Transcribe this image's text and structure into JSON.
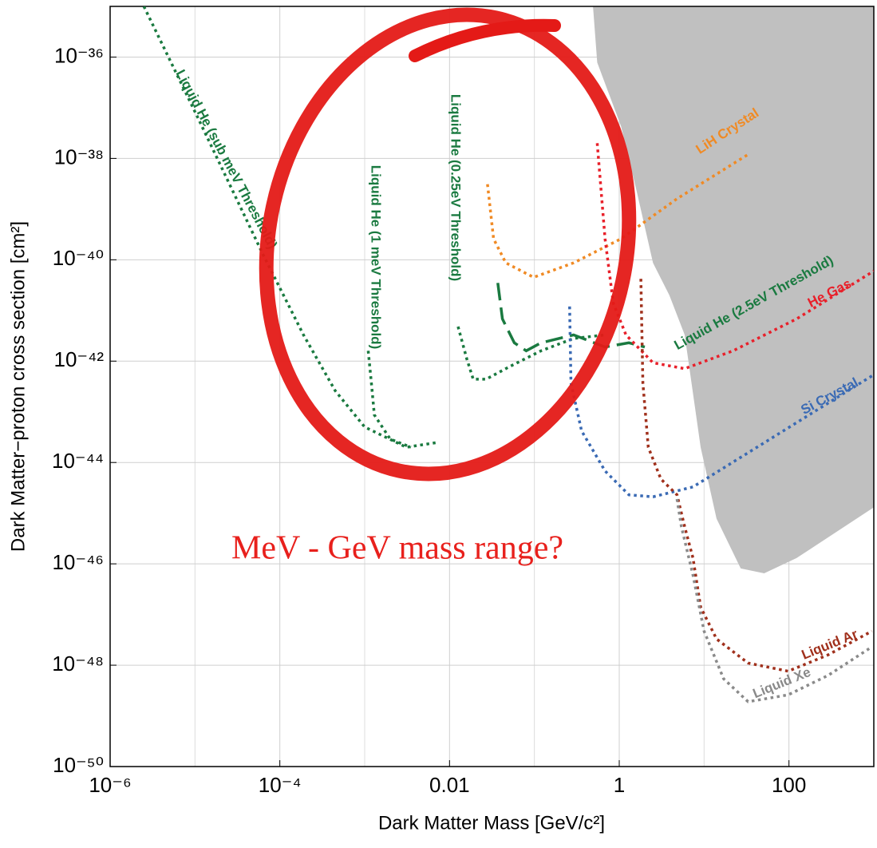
{
  "chart_data": {
    "type": "line",
    "x_label": "Dark Matter Mass [GeV/c²]",
    "y_label": "Dark Matter−proton cross section [cm²]",
    "annotation": "MeV - GeV mass range?",
    "annotation_color": "#e8201c",
    "log_x": true,
    "log_y": true,
    "grid": true,
    "xlim": [
      1e-06,
      1000
    ],
    "ylim": [
      1e-50,
      1e-35
    ],
    "xticks": [
      {
        "value": 1e-06,
        "label": "10⁻⁶"
      },
      {
        "value": 0.0001,
        "label": "10⁻⁴"
      },
      0.01,
      1,
      100
    ],
    "x_minor_grid": [
      1e-05,
      0.001,
      0.1,
      10
    ],
    "yticks": [
      {
        "value": 1e-50,
        "label": "10⁻⁵⁰"
      },
      {
        "value": 1e-48,
        "label": "10⁻⁴⁸"
      },
      {
        "value": 1e-46,
        "label": "10⁻⁴⁶"
      },
      {
        "value": 1e-44,
        "label": "10⁻⁴⁴"
      },
      {
        "value": 1e-42,
        "label": "10⁻⁴²"
      },
      {
        "value": 1e-40,
        "label": "10⁻⁴⁰"
      },
      {
        "value": 1e-38,
        "label": "10⁻³⁸"
      },
      {
        "value": 1e-36,
        "label": "10⁻³⁶"
      }
    ],
    "region": {
      "color": "#c0c0c0",
      "x": [
        0.49,
        0.55,
        1.05,
        1.6,
        2.5,
        3.9,
        5.9,
        9.1,
        14,
        27,
        51,
        123,
        1000
      ],
      "y": [
        1e-35,
        7.8e-37,
        4.3e-38,
        2.3e-39,
        8.7e-41,
        2e-41,
        3.3e-42,
        2e-44,
        7.8e-46,
        8.1e-47,
        6.5e-47,
        1.3e-46,
        1.3e-45
      ]
    },
    "series": [
      {
        "name": "Liquid He (sub meV Threshold)",
        "color": "#1a7a40",
        "dash": "dotted",
        "x": [
          2.5e-06,
          1.1e-05,
          6.3e-05,
          0.00019,
          0.00045,
          0.001,
          0.0031,
          0.0074
        ],
        "values": [
          1e-35,
          6e-38,
          1.3e-40,
          3.3e-42,
          2.6e-43,
          5e-44,
          2e-44,
          2.5e-44
        ]
      },
      {
        "name": "Liquid He (1 meV Threshold)",
        "color": "#1a7a40",
        "dash": "dotted",
        "x": [
          0.0011,
          0.0012,
          0.0013,
          0.002,
          0.0035
        ],
        "values": [
          1.6e-42,
          3.7e-43,
          8.7e-44,
          2.9e-44,
          2e-44
        ]
      },
      {
        "name": "Liquid He (0.25eV Threshold)",
        "color": "#1a7a40",
        "dash": "dotted",
        "x": [
          0.0126,
          0.016,
          0.019,
          0.027,
          0.051,
          0.12,
          0.29,
          0.68
        ],
        "values": [
          4.8e-42,
          1.1e-42,
          4.4e-43,
          4.4e-43,
          7.8e-43,
          1.6e-42,
          2.8e-42,
          3.3e-42
        ]
      },
      {
        "name": "Liquid He (2.5eV Threshold)",
        "color": "#1a7a40",
        "dash": "dashed",
        "x": [
          0.037,
          0.042,
          0.058,
          0.08,
          0.12,
          0.29,
          0.68,
          1.3,
          2.0
        ],
        "values": [
          3.5e-41,
          6.8e-42,
          2.3e-42,
          1.6e-42,
          2.3e-42,
          3.3e-42,
          1.9e-42,
          2.3e-42,
          1.9e-42
        ]
      },
      {
        "name": "LiH Crystal",
        "color": "#f08a24",
        "dash": "dotted",
        "x": [
          0.028,
          0.033,
          0.046,
          0.098,
          0.29,
          1.05,
          4.8,
          33
        ],
        "values": [
          3.1e-39,
          2.6e-40,
          8.7e-41,
          4.5e-41,
          8.7e-41,
          2.6e-40,
          1.6e-39,
          1.2e-38
        ]
      },
      {
        "name": "He Gas",
        "color": "#e8202a",
        "dash": "dotted",
        "x": [
          0.55,
          0.68,
          0.85,
          1.2,
          2.5,
          5.9,
          22,
          123,
          1000
        ],
        "values": [
          2e-38,
          2.6e-40,
          1.4e-41,
          3.3e-42,
          9.3e-43,
          7.1e-43,
          1.6e-42,
          6.8e-42,
          6e-41
        ]
      },
      {
        "name": "Si Crystal",
        "color": "#3a6ab4",
        "dash": "dotted",
        "x": [
          0.26,
          0.27,
          0.36,
          0.68,
          1.3,
          2.5,
          7.4,
          42,
          1000
        ],
        "values": [
          1.2e-41,
          3.7e-43,
          4.2e-44,
          6.8e-45,
          2.3e-45,
          2.1e-45,
          3.3e-45,
          2e-44,
          5.4e-43
        ]
      },
      {
        "name": "Liquid Ar",
        "color": "#a0301c",
        "dash": "dotted",
        "x": [
          1.8,
          1.9,
          2.2,
          3.1,
          4.8,
          5.9,
          7.4,
          9.1,
          14,
          33,
          98,
          290,
          950
        ],
        "values": [
          4.2e-41,
          3.7e-43,
          2e-44,
          4.7e-45,
          2.3e-45,
          5.4e-46,
          1.3e-46,
          1.4e-47,
          3.3e-48,
          1.1e-48,
          7.6e-49,
          1.6e-48,
          4.7e-48
        ]
      },
      {
        "name": "Liquid Xe",
        "color": "#8a8a8a",
        "dash": "dotted",
        "x": [
          4.8,
          5.4,
          7.4,
          10,
          17,
          33,
          98,
          290,
          950
        ],
        "values": [
          1.9e-45,
          5.4e-46,
          6e-47,
          4.7e-48,
          5.4e-49,
          1.9e-49,
          2.6e-49,
          6.3e-49,
          2.3e-48
        ]
      }
    ]
  }
}
